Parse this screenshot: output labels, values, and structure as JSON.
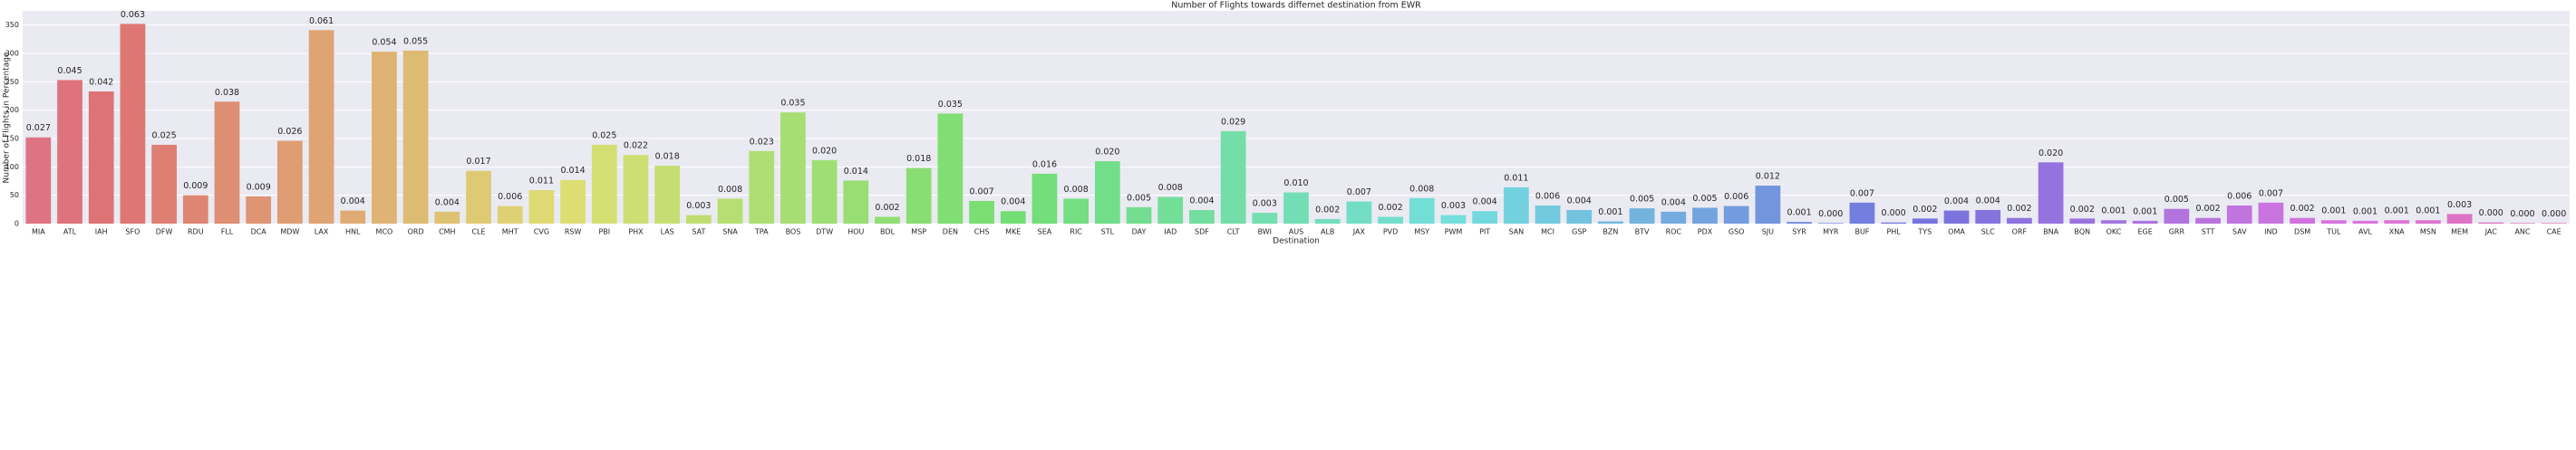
{
  "chart_data": {
    "type": "bar",
    "title": "Number of Flights towards differnet destination from EWR",
    "xlabel": "Destination",
    "ylabel": "Number of Flights in Percentage",
    "categories": [
      "MIA",
      "ATL",
      "IAH",
      "SFO",
      "DFW",
      "RDU",
      "FLL",
      "DCA",
      "MDW",
      "LAX",
      "HNL",
      "MCO",
      "ORD",
      "CMH",
      "CLE",
      "MHT",
      "CVG",
      "RSW",
      "PBI",
      "PHX",
      "LAS",
      "SAT",
      "SNA",
      "TPA",
      "BOS",
      "DTW",
      "HOU",
      "BDL",
      "MSP",
      "DEN",
      "CHS",
      "MKE",
      "SEA",
      "RIC",
      "STL",
      "DAY",
      "IAD",
      "SDF",
      "CLT",
      "BWI",
      "AUS",
      "ALB",
      "JAX",
      "PVD",
      "MSY",
      "PWM",
      "PIT",
      "SAN",
      "MCI",
      "GSP",
      "BZN",
      "BTV",
      "ROC",
      "PDX",
      "GSO",
      "SJU",
      "SYR",
      "MYR",
      "BUF",
      "PHL",
      "TYS",
      "OMA",
      "SLC",
      "ORF",
      "BNA",
      "BQN",
      "OKC",
      "EGE",
      "GRR",
      "STT",
      "SAV",
      "IND",
      "DSM",
      "TUL",
      "AVL",
      "XNA",
      "MSN",
      "MEM",
      "JAC",
      "ANC",
      "CAE"
    ],
    "values": [
      152,
      253,
      233,
      352,
      139,
      50,
      215,
      48,
      146,
      341,
      23,
      303,
      305,
      21,
      93,
      31,
      59,
      77,
      139,
      121,
      102,
      15,
      44,
      128,
      196,
      112,
      76,
      12,
      98,
      194,
      40,
      22,
      88,
      44,
      110,
      29,
      47,
      24,
      163,
      19,
      55,
      8,
      39,
      12,
      45,
      15,
      22,
      64,
      32,
      24,
      4,
      27,
      21,
      28,
      31,
      67,
      3,
      1,
      37,
      2,
      9,
      23,
      24,
      10,
      108,
      9,
      6,
      5,
      26,
      10,
      32,
      37,
      10,
      6,
      5,
      6,
      6,
      17,
      2,
      1,
      1
    ],
    "value_labels": [
      "0.027",
      "0.045",
      "0.042",
      "0.063",
      "0.025",
      "0.009",
      "0.038",
      "0.009",
      "0.026",
      "0.061",
      "0.004",
      "0.054",
      "0.055",
      "0.004",
      "0.017",
      "0.006",
      "0.011",
      "0.014",
      "0.025",
      "0.022",
      "0.018",
      "0.003",
      "0.008",
      "0.023",
      "0.035",
      "0.020",
      "0.014",
      "0.002",
      "0.018",
      "0.035",
      "0.007",
      "0.004",
      "0.016",
      "0.008",
      "0.020",
      "0.005",
      "0.008",
      "0.004",
      "0.029",
      "0.003",
      "0.010",
      "0.002",
      "0.007",
      "0.002",
      "0.008",
      "0.003",
      "0.004",
      "0.011",
      "0.006",
      "0.004",
      "0.001",
      "0.005",
      "0.004",
      "0.005",
      "0.006",
      "0.012",
      "0.001",
      "0.000",
      "0.007",
      "0.000",
      "0.002",
      "0.004",
      "0.004",
      "0.002",
      "0.020",
      "0.002",
      "0.001",
      "0.001",
      "0.005",
      "0.002",
      "0.006",
      "0.007",
      "0.002",
      "0.001",
      "0.001",
      "0.001",
      "0.001",
      "0.003",
      "0.000",
      "0.000",
      "0.000"
    ],
    "palette": "husl",
    "ylim": [
      0,
      375
    ],
    "yticks": [
      0,
      50,
      100,
      150,
      200,
      250,
      300,
      350
    ],
    "grid": true,
    "background": "#eaeaf2"
  }
}
